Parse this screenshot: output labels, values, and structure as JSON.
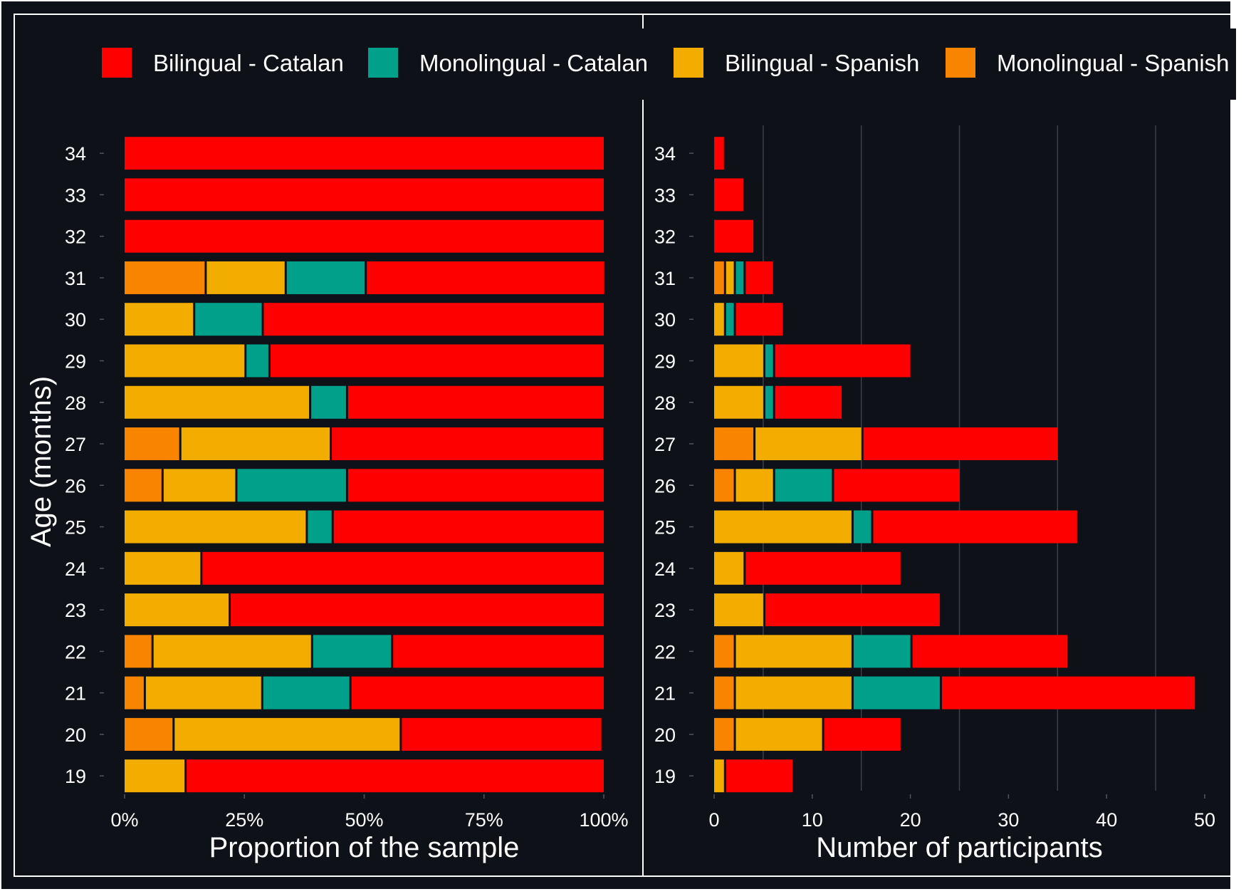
{
  "colors": {
    "background": "#0e1117",
    "frame": "#ffffff",
    "text": "#ffffff",
    "gridline": "#3a3f48"
  },
  "legend": {
    "items": [
      {
        "label": "Bilingual - Catalan",
        "color": "#ff0000"
      },
      {
        "label": "Monolingual - Catalan",
        "color": "#00a08a"
      },
      {
        "label": "Bilingual - Spanish",
        "color": "#f2ad00"
      },
      {
        "label": "Monolingual - Spanish",
        "color": "#f98400"
      }
    ]
  },
  "shared": {
    "ylabel": "Age (months)"
  },
  "chart_data": [
    {
      "type": "bar",
      "orientation": "horizontal",
      "stacked": true,
      "title": "",
      "xlabel": "Proportion of the sample",
      "ylabel": "Age (months)",
      "xlim": [
        0,
        1
      ],
      "xticks": [
        {
          "value": 0,
          "label": "0%"
        },
        {
          "value": 0.25,
          "label": "25%"
        },
        {
          "value": 0.5,
          "label": "50%"
        },
        {
          "value": 0.75,
          "label": "75%"
        },
        {
          "value": 1,
          "label": "100%"
        }
      ],
      "grid": false,
      "categories": [
        "19",
        "20",
        "21",
        "22",
        "23",
        "24",
        "25",
        "26",
        "27",
        "28",
        "29",
        "30",
        "31",
        "32",
        "33",
        "34"
      ],
      "series": [
        {
          "name": "Monolingual - Spanish",
          "color": "#f98400",
          "values": [
            0,
            0.1,
            0.04,
            0.056,
            0,
            0,
            0,
            0.077,
            0.114,
            0,
            0,
            0,
            0.167,
            0,
            0,
            0
          ]
        },
        {
          "name": "Bilingual - Spanish",
          "color": "#f2ad00",
          "values": [
            0.125,
            0.474,
            0.245,
            0.333,
            0.217,
            0.158,
            0.378,
            0.154,
            0.314,
            0.385,
            0.25,
            0.143,
            0.167,
            0,
            0,
            0
          ]
        },
        {
          "name": "Monolingual - Catalan",
          "color": "#00a08a",
          "values": [
            0,
            0,
            0.184,
            0.167,
            0,
            0,
            0.054,
            0.231,
            0,
            0.077,
            0.05,
            0.143,
            0.167,
            0,
            0,
            0
          ]
        },
        {
          "name": "Bilingual - Catalan",
          "color": "#ff0000",
          "values": [
            0.875,
            0.421,
            0.531,
            0.444,
            0.783,
            0.842,
            0.568,
            0.538,
            0.571,
            0.538,
            0.7,
            0.714,
            0.5,
            1,
            1,
            1
          ]
        }
      ]
    },
    {
      "type": "bar",
      "orientation": "horizontal",
      "stacked": true,
      "title": "",
      "xlabel": "Number of participants",
      "ylabel": "",
      "xlim": [
        0,
        50
      ],
      "xticks": [
        {
          "value": 0,
          "label": "0"
        },
        {
          "value": 10,
          "label": "10"
        },
        {
          "value": 20,
          "label": "20"
        },
        {
          "value": 30,
          "label": "30"
        },
        {
          "value": 40,
          "label": "40"
        },
        {
          "value": 50,
          "label": "50"
        }
      ],
      "grid": true,
      "categories": [
        "19",
        "20",
        "21",
        "22",
        "23",
        "24",
        "25",
        "26",
        "27",
        "28",
        "29",
        "30",
        "31",
        "32",
        "33",
        "34"
      ],
      "series": [
        {
          "name": "Monolingual - Spanish",
          "color": "#f98400",
          "values": [
            0,
            2,
            2,
            2,
            0,
            0,
            0,
            2,
            4,
            0,
            0,
            0,
            1,
            0,
            0,
            0
          ]
        },
        {
          "name": "Bilingual - Spanish",
          "color": "#f2ad00",
          "values": [
            1,
            9,
            12,
            12,
            5,
            3,
            14,
            4,
            11,
            5,
            5,
            1,
            1,
            0,
            0,
            0
          ]
        },
        {
          "name": "Monolingual - Catalan",
          "color": "#00a08a",
          "values": [
            0,
            0,
            9,
            6,
            0,
            0,
            2,
            6,
            0,
            1,
            1,
            1,
            1,
            0,
            0,
            0
          ]
        },
        {
          "name": "Bilingual - Catalan",
          "color": "#ff0000",
          "values": [
            7,
            8,
            26,
            16,
            18,
            16,
            21,
            13,
            20,
            7,
            14,
            5,
            3,
            4,
            3,
            1
          ]
        }
      ]
    }
  ]
}
